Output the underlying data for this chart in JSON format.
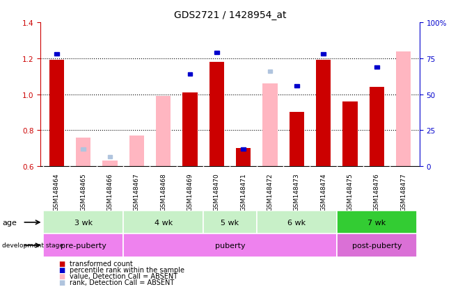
{
  "title": "GDS2721 / 1428954_at",
  "samples": [
    "GSM148464",
    "GSM148465",
    "GSM148466",
    "GSM148467",
    "GSM148468",
    "GSM148469",
    "GSM148470",
    "GSM148471",
    "GSM148472",
    "GSM148473",
    "GSM148474",
    "GSM148475",
    "GSM148476",
    "GSM148477"
  ],
  "transformed_count": [
    1.19,
    null,
    null,
    null,
    null,
    1.01,
    1.18,
    0.7,
    null,
    0.9,
    1.19,
    0.96,
    1.04,
    null
  ],
  "percentile_rank_pct": [
    78,
    null,
    null,
    null,
    null,
    64,
    79,
    12,
    null,
    56,
    78,
    null,
    69,
    null
  ],
  "absent_value": [
    null,
    0.76,
    0.63,
    0.77,
    0.99,
    null,
    null,
    null,
    1.06,
    null,
    null,
    null,
    null,
    1.24
  ],
  "absent_rank_pct": [
    null,
    12,
    6.5,
    null,
    null,
    null,
    null,
    null,
    66,
    null,
    null,
    null,
    null,
    null
  ],
  "ylim_left": [
    0.6,
    1.4
  ],
  "ylim_right": [
    0,
    100
  ],
  "yticks_left": [
    0.6,
    0.8,
    1.0,
    1.2,
    1.4
  ],
  "yticks_right": [
    0,
    25,
    50,
    75,
    100
  ],
  "age_groups": [
    {
      "label": "3 wk",
      "start": 0,
      "end": 3,
      "color": "#c8f0c8"
    },
    {
      "label": "4 wk",
      "start": 3,
      "end": 6,
      "color": "#c8f0c8"
    },
    {
      "label": "5 wk",
      "start": 6,
      "end": 8,
      "color": "#c8f0c8"
    },
    {
      "label": "6 wk",
      "start": 8,
      "end": 11,
      "color": "#c8f0c8"
    },
    {
      "label": "7 wk",
      "start": 11,
      "end": 14,
      "color": "#33cc33"
    }
  ],
  "dev_groups": [
    {
      "label": "pre-puberty",
      "start": 0,
      "end": 3,
      "color": "#ee82ee"
    },
    {
      "label": "puberty",
      "start": 3,
      "end": 11,
      "color": "#ee82ee"
    },
    {
      "label": "post-puberty",
      "start": 11,
      "end": 14,
      "color": "#da70d6"
    }
  ],
  "red_color": "#cc0000",
  "blue_color": "#0000cc",
  "pink_color": "#ffb6c1",
  "lavender_color": "#b0c4de",
  "right_axis_color": "#0000cc",
  "gray_bg": "#d0d0d0",
  "bar_width": 0.55
}
